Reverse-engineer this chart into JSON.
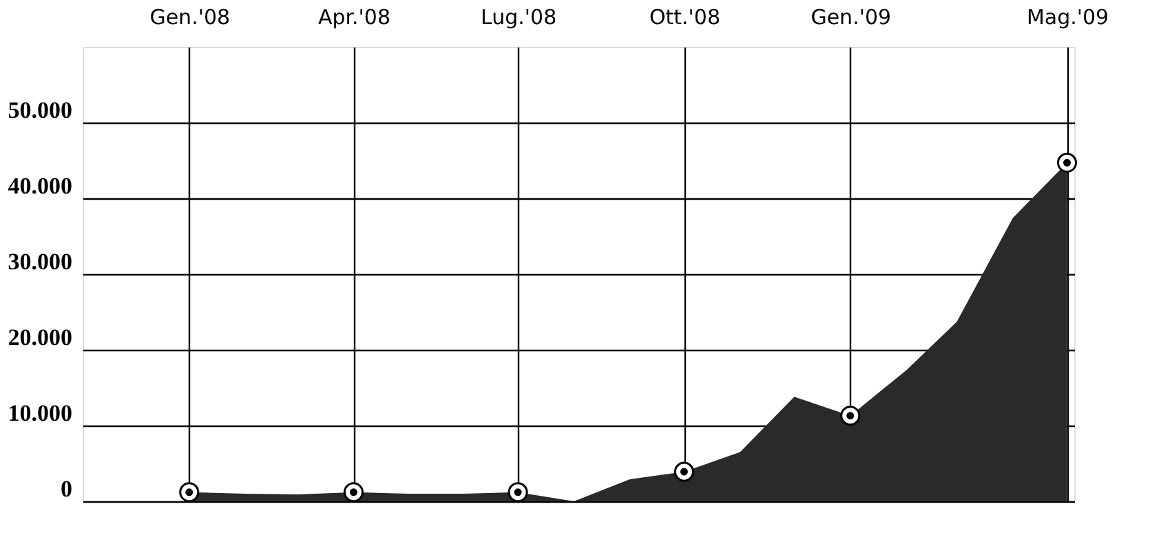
{
  "chart_data": {
    "type": "area",
    "x": [
      "2008-01",
      "2008-02",
      "2008-03",
      "2008-04",
      "2008-05",
      "2008-06",
      "2008-07",
      "2008-08",
      "2008-09",
      "2008-10",
      "2008-11",
      "2008-12",
      "2009-01",
      "2009-02",
      "2009-03",
      "2009-04",
      "2009-05"
    ],
    "series": [
      {
        "color": "#2a2a2a",
        "values": [
          1200,
          1000,
          900,
          1200,
          1000,
          1000,
          1200,
          0,
          2900,
          3900,
          6500,
          13800,
          11300,
          17300,
          23700,
          37400,
          44700
        ]
      },
      {
        "type": "scatter",
        "marker": "circle",
        "color": "#000000",
        "x": [
          "2008-01",
          "2008-04",
          "2008-07",
          "2008-10",
          "2009-01",
          "2009-05"
        ],
        "values": [
          1200,
          1200,
          1200,
          3900,
          11300,
          44700
        ]
      }
    ],
    "xlim": [
      "2007-11-03",
      "2009-05-05"
    ],
    "xticks": [
      {
        "value": "2008-01",
        "label": "Gen.'08"
      },
      {
        "value": "2008-04",
        "label": "Apr.'08"
      },
      {
        "value": "2008-07",
        "label": "Lug.'08"
      },
      {
        "value": "2008-10",
        "label": "Ott.'08"
      },
      {
        "value": "2009-01",
        "label": "Gen.'09"
      },
      {
        "value": "2009-05",
        "label": "Mag.'09"
      }
    ],
    "ylim": [
      0,
      60000
    ],
    "yticks": [
      {
        "value": 0,
        "label": "0"
      },
      {
        "value": 10000,
        "label": "10.000"
      },
      {
        "value": 20000,
        "label": "20.000"
      },
      {
        "value": 30000,
        "label": "30.000"
      },
      {
        "value": 40000,
        "label": "40.000"
      },
      {
        "value": 50000,
        "label": "50.000"
      }
    ],
    "grid": true
  }
}
